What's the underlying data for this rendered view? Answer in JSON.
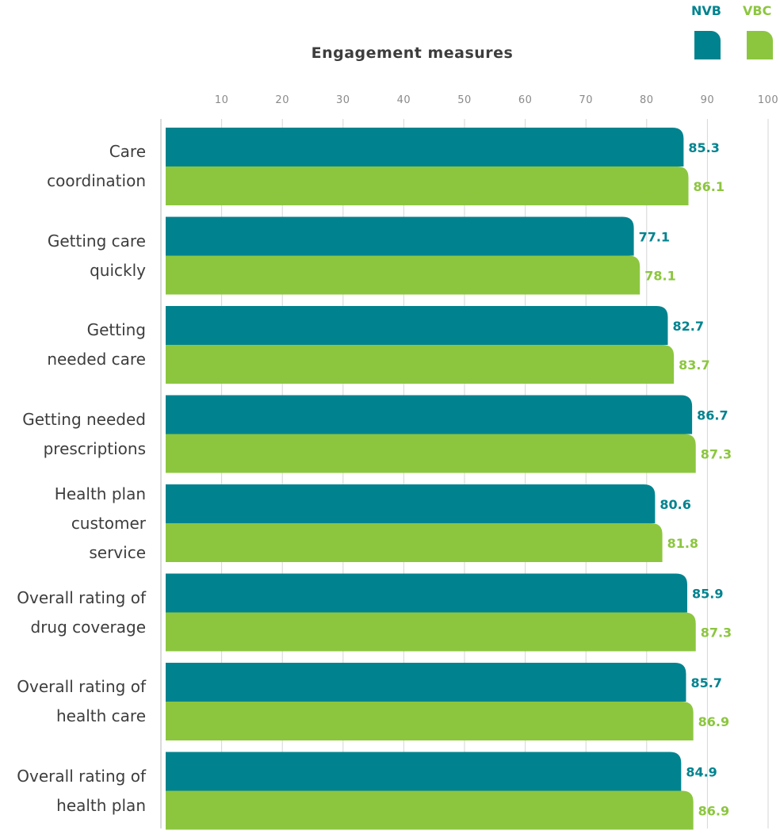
{
  "chart_data": {
    "type": "bar",
    "orientation": "horizontal",
    "title": "Engagement measures",
    "x_ticks": [
      "10",
      "20",
      "30",
      "40",
      "50",
      "60",
      "70",
      "80",
      "90",
      "100"
    ],
    "xlim": [
      0,
      100
    ],
    "grid": true,
    "legend_placement": "top-right",
    "categories": [
      "Care\ncoordination",
      "Getting care\nquickly",
      "Getting\nneeded care",
      "Getting needed\nprescriptions",
      "Health plan\ncustomer\nservice",
      "Overall rating of\ndrug coverage",
      "Overall rating of\nhealth care",
      "Overall rating of\nhealth plan"
    ],
    "series": [
      {
        "name": "NVB",
        "color": "#00838f",
        "values": [
          85.3,
          77.1,
          82.7,
          86.7,
          80.6,
          85.9,
          85.7,
          84.9
        ],
        "value_labels": [
          "85.3",
          "77.1",
          "82.7",
          "86.7",
          "80.6",
          "85.9",
          "85.7",
          "84.9"
        ]
      },
      {
        "name": "VBC",
        "color": "#8cc63f",
        "values": [
          86.1,
          78.1,
          83.7,
          87.3,
          81.8,
          87.3,
          86.9,
          86.9
        ],
        "value_labels": [
          "86.1",
          "78.1",
          "83.7",
          "87.3",
          "81.8",
          "87.3",
          "86.9",
          "86.9"
        ]
      }
    ]
  },
  "legend": [
    {
      "label": "NVB",
      "color": "#00838f"
    },
    {
      "label": "VBC",
      "color": "#8cc63f"
    }
  ]
}
